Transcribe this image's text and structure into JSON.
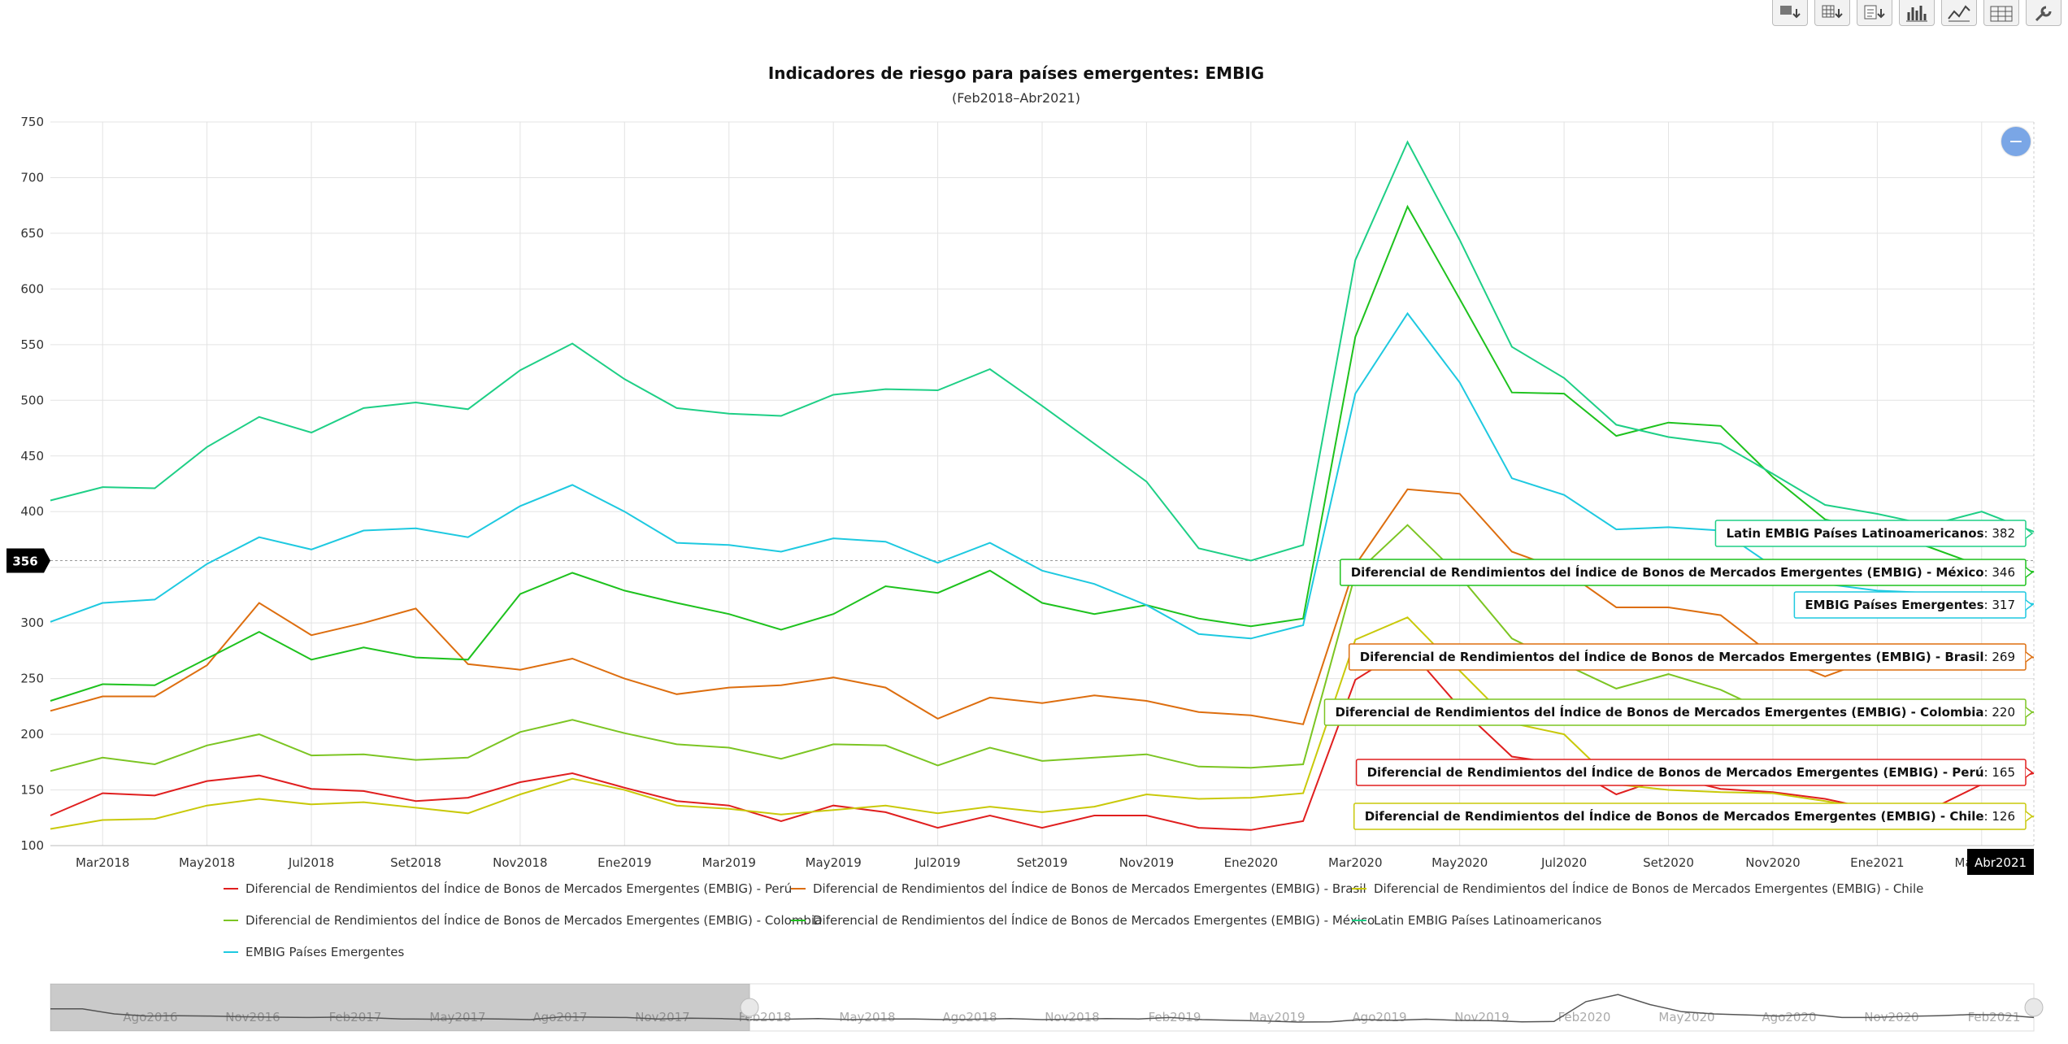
{
  "toolbar": {
    "buttons": [
      {
        "name": "export-image-button",
        "icon": "image-download-icon"
      },
      {
        "name": "export-csv-button",
        "icon": "csv-download-icon"
      },
      {
        "name": "export-pdf-button",
        "icon": "pdf-download-icon"
      },
      {
        "name": "bar-chart-button",
        "icon": "bar-chart-icon"
      },
      {
        "name": "line-chart-button",
        "icon": "line-chart-icon"
      },
      {
        "name": "table-view-button",
        "icon": "table-icon"
      },
      {
        "name": "settings-button",
        "icon": "wrench-icon"
      }
    ]
  },
  "zoom_reset_label": "−",
  "crosshair_value": "356",
  "x_axis_current": "Abr2021",
  "chart_data": {
    "type": "line",
    "title": "Indicadores de riesgo para países emergentes: EMBIG",
    "subtitle": "(Feb2018–Abr2021)",
    "xlabel": "",
    "ylabel": "",
    "ylim": [
      100,
      750
    ],
    "yticks": [
      100,
      150,
      200,
      250,
      300,
      350,
      400,
      450,
      500,
      550,
      600,
      650,
      700,
      750
    ],
    "grid": true,
    "legend_position": "bottom",
    "x": [
      "Feb2018",
      "Mar2018",
      "Abr2018",
      "May2018",
      "Jun2018",
      "Jul2018",
      "Ago2018",
      "Set2018",
      "Oct2018",
      "Nov2018",
      "Dic2018",
      "Ene2019",
      "Feb2019",
      "Mar2019",
      "Abr2019",
      "May2019",
      "Jun2019",
      "Jul2019",
      "Ago2019",
      "Set2019",
      "Oct2019",
      "Nov2019",
      "Dic2019",
      "Ene2020",
      "Feb2020",
      "Mar2020",
      "Abr2020",
      "May2020",
      "Jun2020",
      "Jul2020",
      "Ago2020",
      "Set2020",
      "Oct2020",
      "Nov2020",
      "Dic2020",
      "Ene2021",
      "Feb2021",
      "Mar2021",
      "Abr2021"
    ],
    "xtick_labels": [
      "Mar2018",
      "May2018",
      "Jul2018",
      "Set2018",
      "Nov2018",
      "Ene2019",
      "Mar2019",
      "May2019",
      "Jul2019",
      "Set2019",
      "Nov2019",
      "Ene2020",
      "Mar2020",
      "May2020",
      "Jul2020",
      "Set2020",
      "Nov2020",
      "Ene2021",
      "Mar2021"
    ],
    "series": [
      {
        "name": "Diferencial de Rendimientos del Índice de Bonos de Mercados Emergentes (EMBIG) - Perú",
        "color": "#e01f1f",
        "tooltip": "Diferencial de Rendimientos del Índice de Bonos de Mercados Emergentes (EMBIG) - Perú",
        "last": "165",
        "values": [
          127,
          147,
          145,
          158,
          163,
          151,
          149,
          140,
          143,
          157,
          165,
          152,
          140,
          136,
          122,
          136,
          130,
          116,
          127,
          116,
          127,
          127,
          116,
          114,
          122,
          249,
          278,
          224,
          180,
          173,
          146,
          162,
          151,
          148,
          142,
          132,
          132,
          155,
          165
        ]
      },
      {
        "name": "Diferencial de Rendimientos del Índice de Bonos de Mercados Emergentes (EMBIG) - Brasil",
        "color": "#dd6e0f",
        "tooltip": "Diferencial de Rendimientos del Índice de Bonos de Mercados Emergentes (EMBIG) - Brasil",
        "last": "269",
        "values": [
          221,
          234,
          234,
          262,
          318,
          289,
          300,
          313,
          263,
          258,
          268,
          250,
          236,
          242,
          244,
          251,
          242,
          214,
          233,
          228,
          235,
          230,
          220,
          217,
          209,
          352,
          420,
          416,
          364,
          347,
          314,
          314,
          307,
          271,
          252,
          269,
          267,
          275,
          269
        ]
      },
      {
        "name": "Diferencial de Rendimientos del Índice de Bonos de Mercados Emergentes (EMBIG) - Chile",
        "color": "#c9c90a",
        "tooltip": "Diferencial de Rendimientos del Índice de Bonos de Mercados Emergentes (EMBIG) - Chile",
        "last": "126",
        "values": [
          115,
          123,
          124,
          136,
          142,
          137,
          139,
          134,
          129,
          146,
          160,
          150,
          136,
          133,
          128,
          132,
          136,
          129,
          135,
          130,
          135,
          146,
          142,
          143,
          147,
          285,
          305,
          257,
          210,
          200,
          155,
          150,
          148,
          147,
          140,
          132,
          130,
          128,
          126
        ]
      },
      {
        "name": "Diferencial de Rendimientos del Índice de Bonos de Mercados Emergentes (EMBIG) - Colombia",
        "color": "#7cc523",
        "tooltip": "Diferencial de Rendimientos del Índice de Bonos de Mercados Emergentes (EMBIG) - Colombia",
        "last": "220",
        "values": [
          167,
          179,
          173,
          190,
          200,
          181,
          182,
          177,
          179,
          202,
          213,
          201,
          191,
          188,
          178,
          191,
          190,
          172,
          188,
          176,
          179,
          182,
          171,
          170,
          173,
          344,
          388,
          342,
          286,
          263,
          241,
          254,
          240,
          218,
          209,
          214,
          213,
          218,
          220
        ]
      },
      {
        "name": "Diferencial de Rendimientos del Índice de Bonos de Mercados Emergentes (EMBIG) - México",
        "color": "#1ec21e",
        "tooltip": "Diferencial de Rendimientos del Índice de Bonos de Mercados Emergentes (EMBIG) - México",
        "last": "346",
        "values": [
          230,
          245,
          244,
          268,
          292,
          267,
          278,
          269,
          267,
          326,
          345,
          329,
          318,
          308,
          294,
          308,
          333,
          327,
          347,
          318,
          308,
          316,
          304,
          297,
          304,
          557,
          674,
          591,
          507,
          506,
          468,
          480,
          477,
          431,
          393,
          383,
          368,
          351,
          346
        ]
      },
      {
        "name": "Latin EMBIG Países Latinoamericanos",
        "color": "#1ecf86",
        "tooltip": "Latin EMBIG Países Latinoamericanos",
        "last": "382",
        "values": [
          410,
          422,
          421,
          458,
          485,
          471,
          493,
          498,
          492,
          527,
          551,
          519,
          493,
          488,
          486,
          505,
          510,
          509,
          528,
          495,
          461,
          427,
          367,
          356,
          370,
          626,
          732,
          644,
          548,
          520,
          478,
          467,
          461,
          434,
          406,
          398,
          388,
          400,
          382
        ]
      },
      {
        "name": "EMBIG Países Emergentes",
        "color": "#1ec9e0",
        "tooltip": "EMBIG Países Emergentes",
        "last": "317",
        "values": [
          301,
          318,
          321,
          353,
          377,
          366,
          383,
          385,
          377,
          405,
          424,
          400,
          372,
          370,
          364,
          376,
          373,
          354,
          372,
          347,
          335,
          316,
          290,
          286,
          298,
          506,
          578,
          516,
          430,
          415,
          384,
          386,
          383,
          351,
          335,
          329,
          327,
          321,
          317
        ]
      }
    ],
    "navigator": {
      "labels": [
        "Ago2016",
        "Nov2016",
        "Feb2017",
        "May2017",
        "Ago2017",
        "Nov2017",
        "Feb2018",
        "May2018",
        "Ago2018",
        "Nov2018",
        "Feb2019",
        "May2019",
        "Ago2019",
        "Nov2019",
        "Feb2020",
        "May2020",
        "Ago2020",
        "Nov2020",
        "Feb2021"
      ],
      "values": [
        420,
        420,
        385,
        370,
        372,
        370,
        365,
        362,
        360,
        362,
        358,
        350,
        348,
        352,
        350,
        345,
        365,
        362,
        360,
        350,
        355,
        352,
        345,
        348,
        352,
        345,
        350,
        350,
        345,
        348,
        352,
        345,
        348,
        352,
        350,
        360,
        345,
        340,
        335,
        328,
        330,
        345,
        340,
        348,
        340,
        338,
        330,
        332,
        470,
        520,
        450,
        400,
        385,
        378,
        370,
        382,
        360,
        360,
        368,
        372,
        380,
        378,
        360
      ]
    }
  }
}
